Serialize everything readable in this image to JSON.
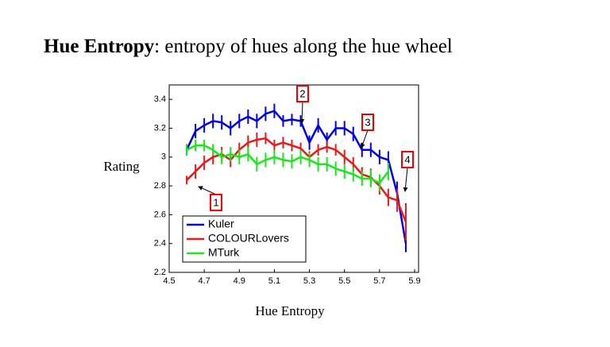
{
  "slide": {
    "term": "Hue Entropy",
    "definition": ": entropy of hues along the hue wheel"
  },
  "chart_data": {
    "type": "line",
    "x_label": "Hue Entropy",
    "y_label": "Rating",
    "x": [
      4.6,
      4.65,
      4.7,
      4.75,
      4.8,
      4.85,
      4.9,
      4.95,
      5.0,
      5.05,
      5.1,
      5.15,
      5.2,
      5.25,
      5.3,
      5.35,
      5.4,
      5.45,
      5.5,
      5.55,
      5.6,
      5.65,
      5.7,
      5.75,
      5.8,
      5.85
    ],
    "series": [
      {
        "name": "Kuler",
        "color": "#0000e6",
        "values": [
          3.05,
          3.18,
          3.22,
          3.25,
          3.24,
          3.2,
          3.25,
          3.28,
          3.25,
          3.3,
          3.32,
          3.25,
          3.26,
          3.25,
          3.1,
          3.22,
          3.12,
          3.2,
          3.2,
          3.16,
          3.05,
          3.05,
          3.0,
          2.98,
          2.75,
          2.4
        ],
        "errors": [
          0.04,
          0.05,
          0.05,
          0.05,
          0.05,
          0.05,
          0.05,
          0.05,
          0.05,
          0.05,
          0.05,
          0.04,
          0.04,
          0.04,
          0.05,
          0.05,
          0.05,
          0.05,
          0.05,
          0.05,
          0.05,
          0.05,
          0.05,
          0.06,
          0.08,
          0.06
        ]
      },
      {
        "name": "COLOURLovers",
        "color": "#e61a1a",
        "values": [
          2.84,
          2.9,
          2.96,
          3.0,
          3.02,
          2.98,
          3.05,
          3.1,
          3.12,
          3.13,
          3.08,
          3.1,
          3.08,
          3.06,
          3.0,
          3.05,
          3.07,
          3.05,
          3.0,
          2.95,
          2.88,
          2.86,
          2.8,
          2.72,
          2.7,
          2.55
        ],
        "errors": [
          0.03,
          0.05,
          0.05,
          0.05,
          0.05,
          0.05,
          0.05,
          0.05,
          0.05,
          0.04,
          0.04,
          0.04,
          0.04,
          0.04,
          0.04,
          0.04,
          0.04,
          0.04,
          0.05,
          0.05,
          0.05,
          0.06,
          0.06,
          0.06,
          0.08,
          0.13
        ]
      },
      {
        "name": "MTurk",
        "color": "#1ae61a",
        "values": [
          3.05,
          3.08,
          3.08,
          3.05,
          3.0,
          3.02,
          3.0,
          3.02,
          2.95,
          2.98,
          3.0,
          2.98,
          2.97,
          3.0,
          2.98,
          2.95,
          2.95,
          2.92,
          2.9,
          2.88,
          2.85,
          2.85,
          2.82,
          2.9,
          null,
          null
        ],
        "errors": [
          0.04,
          0.04,
          0.04,
          0.04,
          0.05,
          0.05,
          0.05,
          0.05,
          0.05,
          0.05,
          0.05,
          0.05,
          0.05,
          0.05,
          0.05,
          0.05,
          0.05,
          0.05,
          0.05,
          0.05,
          0.05,
          0.06,
          0.06,
          0.06,
          null,
          null
        ]
      }
    ],
    "xlim": [
      4.5,
      5.9
    ],
    "xticks": [
      4.5,
      4.7,
      4.9,
      5.1,
      5.3,
      5.5,
      5.7,
      5.9
    ],
    "ylim": [
      2.2,
      3.5
    ],
    "yticks": [
      2.2,
      2.4,
      2.6,
      2.8,
      3,
      3.2,
      3.4
    ],
    "legend": "lower left",
    "annotations": [
      "1",
      "2",
      "3",
      "4"
    ]
  }
}
